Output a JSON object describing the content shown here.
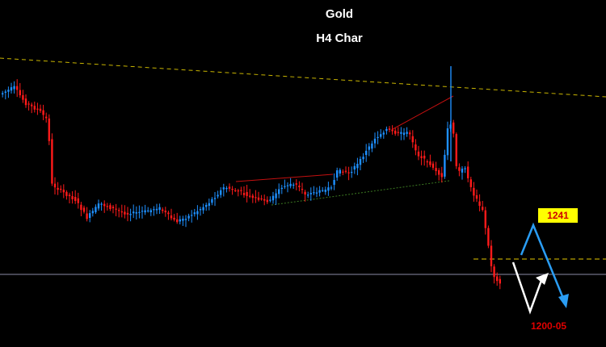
{
  "chart_data": {
    "type": "candlestick",
    "title": "Gold",
    "subtitle": "H4 Char",
    "colors": {
      "background": "#000000",
      "bull": "#1e90ff",
      "bear": "#ff1a1a",
      "resistance": "#c8b400",
      "level": "#e6c800",
      "support": "#4a8f2a",
      "current_price": "#8c8ca6",
      "forecast_primary": "#2a9df4",
      "forecast_alt": "#ffffff"
    },
    "annotations": {
      "target_high_label": "1241",
      "target_low_label": "1200-05"
    }
  }
}
